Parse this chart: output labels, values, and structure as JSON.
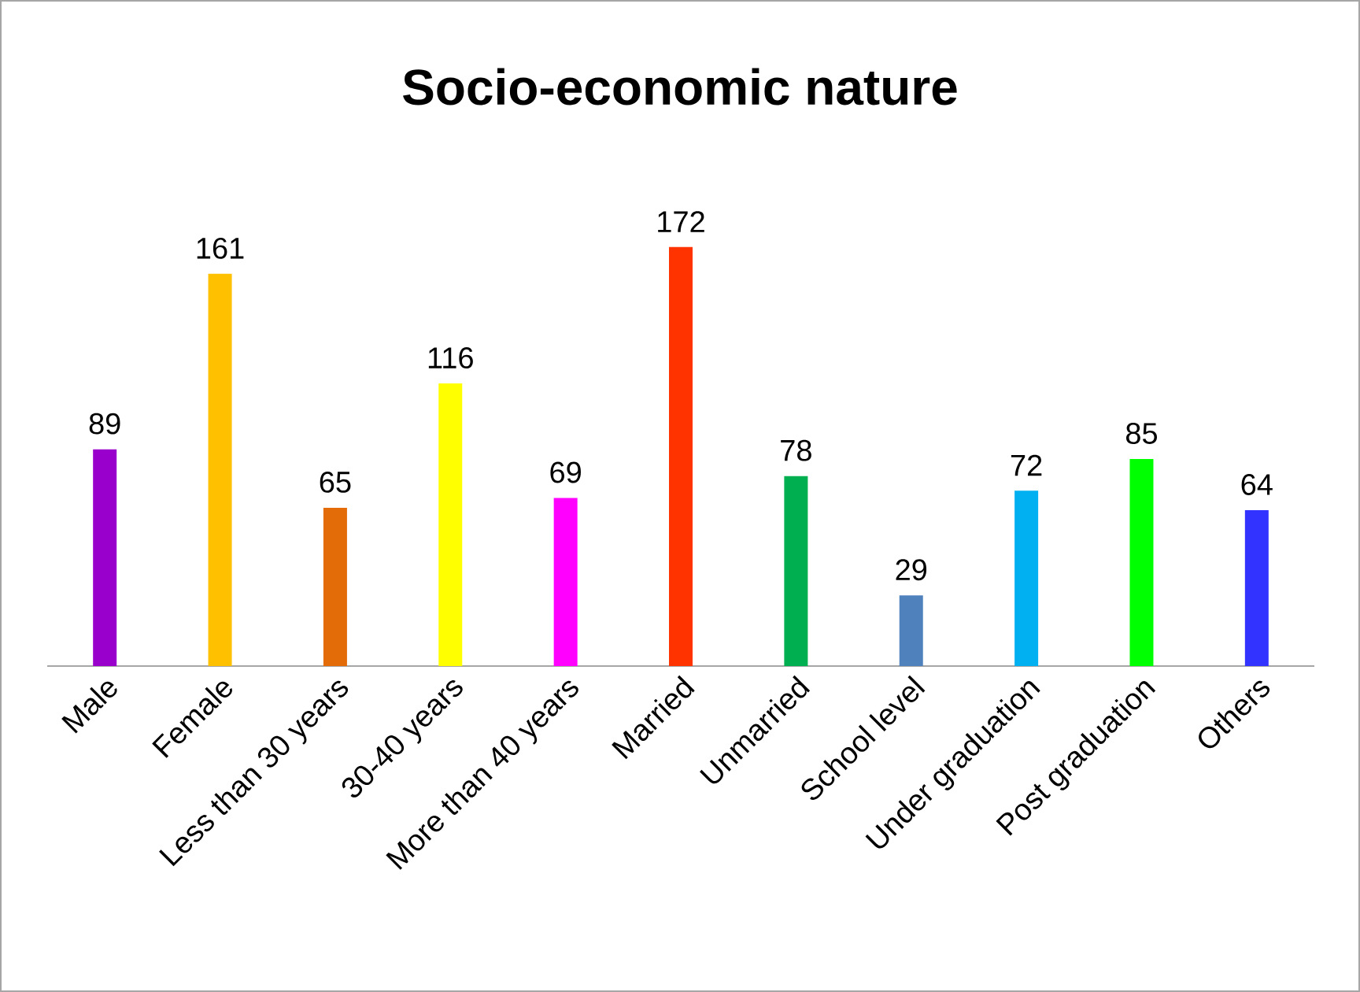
{
  "chart_data": {
    "type": "bar",
    "title": "Socio-economic nature",
    "categories": [
      "Male",
      "Female",
      "Less than 30 years",
      "30-40 years",
      "More than 40 years",
      "Married",
      "Unmarried",
      "School level",
      "Under graduation",
      "Post graduation",
      "Others"
    ],
    "values": [
      89,
      161,
      65,
      116,
      69,
      172,
      78,
      29,
      72,
      85,
      64
    ],
    "colors": [
      "#9900cc",
      "#ffc000",
      "#e36c09",
      "#ffff00",
      "#ff00ff",
      "#ff3300",
      "#00b050",
      "#4f81bd",
      "#00b0f0",
      "#00ff00",
      "#3333ff"
    ],
    "data_labels": true
  }
}
